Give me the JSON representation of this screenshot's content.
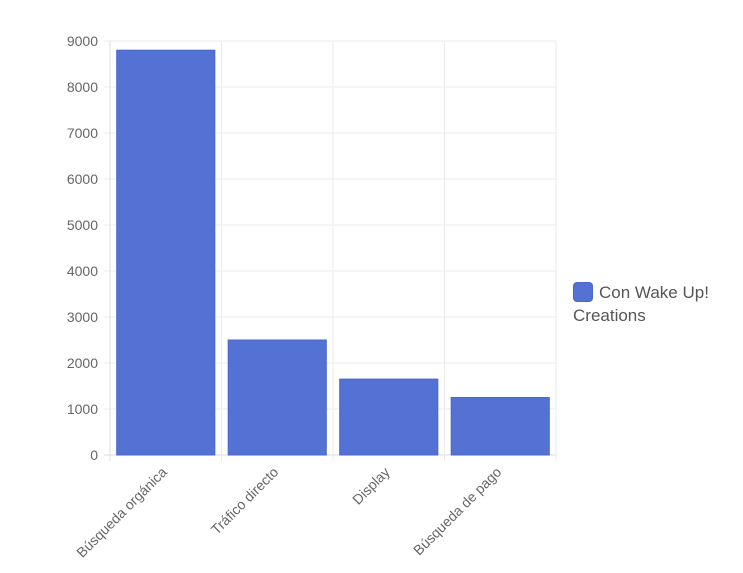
{
  "chart_data": {
    "type": "bar",
    "categories": [
      "Búsqueda orgánica",
      "Tráfico directo",
      "Display",
      "Búsqueda de pago"
    ],
    "series": [
      {
        "name": "Con Wake Up! Creations",
        "values": [
          8800,
          2500,
          1650,
          1250
        ],
        "color": "#5472d3"
      }
    ],
    "ylim": [
      0,
      9000
    ],
    "yticks": [
      0,
      1000,
      2000,
      3000,
      4000,
      5000,
      6000,
      7000,
      8000,
      9000
    ],
    "grid": true,
    "legend_position": "right",
    "colors": {
      "bar": "#5472d3",
      "bar_border": "#4a67c9",
      "grid": "#ebebeb",
      "axis": "#dddddd",
      "text": "#666666"
    }
  }
}
